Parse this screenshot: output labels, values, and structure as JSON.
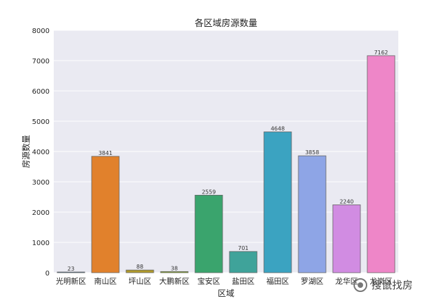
{
  "chart_data": {
    "type": "bar",
    "title": "各区域房源数量",
    "xlabel": "区域",
    "ylabel": "房源数量",
    "ylim": [
      0,
      8000
    ],
    "yticks": [
      0,
      1000,
      2000,
      3000,
      4000,
      5000,
      6000,
      7000,
      8000
    ],
    "categories": [
      "光明新区",
      "南山区",
      "坪山区",
      "大鹏新区",
      "宝安区",
      "盐田区",
      "福田区",
      "罗湖区",
      "龙华区",
      "龙岗区"
    ],
    "values": [
      23,
      3841,
      88,
      38,
      2559,
      701,
      4648,
      3858,
      2240,
      7162
    ],
    "data_labels": [
      "23",
      "3841",
      "88",
      "38",
      "2559",
      "701",
      "4648",
      "3858",
      "2240",
      "7162"
    ],
    "colors": [
      "#3274a1",
      "#e1812c",
      "#b09a2b",
      "#86a42f",
      "#3aa46d",
      "#3fa39a",
      "#3ba3c1",
      "#8ea5e6",
      "#d18ce2",
      "#ee86c8"
    ],
    "background_color": "#eaeaf2",
    "grid": true,
    "legend": "none"
  },
  "watermark": {
    "text": "搜鼠找房",
    "icon": "wechat-icon"
  }
}
